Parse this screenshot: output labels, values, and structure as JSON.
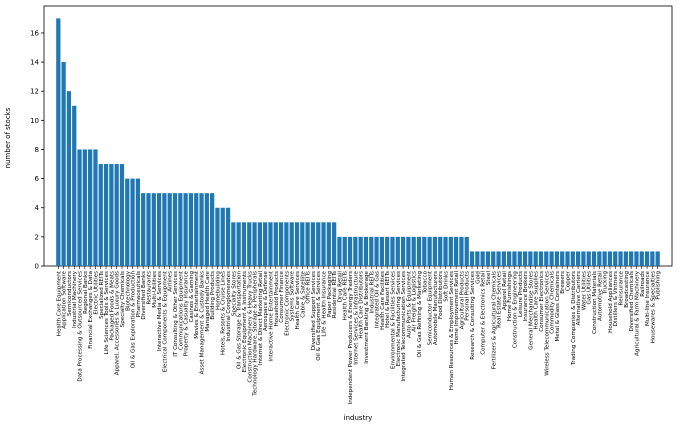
{
  "chart_data": {
    "type": "bar",
    "x_label": "industry",
    "y_label": "number of stocks",
    "color": "#1f77b4",
    "ylim": [
      0,
      17.85
    ],
    "yticks": [
      0,
      2,
      4,
      6,
      8,
      10,
      12,
      14,
      16
    ],
    "categories": [
      "Health Care Equipment",
      "Application Software",
      "Semiconductors",
      "Industrial Machinery",
      "Data Processing & Outsourced Services",
      "Regional Banks",
      "Financial Exchanges & Data",
      "Electric Utilities",
      "Specialized REITs",
      "Life Sciences Tools & Services",
      "Packaged Foods & Meats",
      "Apparel, Accessories & Luxury Goods",
      "Specialty Chemicals",
      "Biotechnology",
      "Oil & Gas Exploration & Production",
      "Pharmaceuticals",
      "Diversified Banks",
      "Restaurants",
      "Multi-Utilities",
      "Interactive Media & Services",
      "Electrical Components & Equipment",
      "Airlines",
      "IT Consulting & Other Services",
      "Communications Equipment",
      "Property & Casualty Insurance",
      "Casinos & Gaming",
      "Movies & Entertainment",
      "Asset Management & Custody Banks",
      "Managed Health Care",
      "Building Products",
      "Homebuilding",
      "Hotels, Resorts & Cruise Lines",
      "Industrial Conglomerates",
      "Specialty Stores",
      "Oil & Gas Storage & Transportation",
      "Electronic Equipment & Instruments",
      "Construction Machinery & Heavy Trucks",
      "Technology Hardware, Storage & Peripherals",
      "Internet & Direct Marketing Retail",
      "Aerospace & Defense",
      "Interactive Home Entertainment",
      "Household Products",
      "Consumer Finance",
      "Electronic Components",
      "Systems Software",
      "Health Care Services",
      "Cable & Satellite",
      "Office REITs",
      "Diversified Support Services",
      "Oil & Gas Equipment & Services",
      "Life & Health Insurance",
      "Paper Packaging",
      "Residential REITs",
      "Drug Retail",
      "Health Care REITs",
      "Independent Power Producers & Energy Traders",
      "Internet Services & Infrastructure",
      "Health Care Distributors",
      "Investment Banking & Brokerage",
      "Industrial REITs",
      "Integrated Oil & Gas",
      "Health Care Facilities",
      "Hotel & Resort REITs",
      "Environmental & Facilities Services",
      "Electronic Manufacturing Services",
      "Integrated Telecommunication Services",
      "Auto Parts & Equipment",
      "Air Freight & Logistics",
      "Oil & Gas Refining & Marketing",
      "Tobacco",
      "Semiconductor Equipment",
      "Automobile Manufacturers",
      "Food Distributors",
      "Soft Drinks",
      "Human Resources & Employment Services",
      "Home Improvement Retail",
      "Agricultural Products",
      "Personal Products",
      "Research & Consulting Services",
      "Gold",
      "Computer & Electronics Retail",
      "Steel",
      "Fertilizers & Agricultural Chemicals",
      "Real Estate Services",
      "Apparel Retail",
      "Home Furnishings",
      "Construction & Engineering",
      "Leisure Products",
      "Insurance Brokers",
      "General Merchandise Stores",
      "Health Care Supplies",
      "Consumer Electronics",
      "Wireless Telecommunication Services",
      "Commodity Chemicals",
      "Metal & Glass Containers",
      "Brewers",
      "Copper",
      "Trading Companies & Distributors",
      "Alternative Carriers",
      "Water Utilities",
      "Gas Utilities",
      "Construction Materials",
      "Automotive Retail",
      "Trucking",
      "Household Appliances",
      "Distillers & Vintners",
      "Reinsurance",
      "Broadcasting",
      "Diversified Chemicals",
      "Agricultural & Farm Machinery",
      "Railroads",
      "Multi-line Insurance",
      "Housewares & Specialties",
      "Publishing"
    ],
    "values": [
      17,
      14,
      12,
      11,
      8,
      8,
      8,
      8,
      7,
      7,
      7,
      7,
      7,
      6,
      6,
      6,
      5,
      5,
      5,
      5,
      5,
      5,
      5,
      5,
      5,
      5,
      5,
      5,
      5,
      5,
      4,
      4,
      4,
      3,
      3,
      3,
      3,
      3,
      3,
      3,
      3,
      3,
      3,
      3,
      3,
      3,
      3,
      3,
      3,
      3,
      3,
      3,
      3,
      2,
      2,
      2,
      2,
      2,
      2,
      2,
      2,
      2,
      2,
      2,
      2,
      2,
      2,
      2,
      2,
      2,
      2,
      2,
      2,
      2,
      2,
      2,
      2,
      2,
      1,
      1,
      1,
      1,
      1,
      1,
      1,
      1,
      1,
      1,
      1,
      1,
      1,
      1,
      1,
      1,
      1,
      1,
      1,
      1,
      1,
      1,
      1,
      1,
      1,
      1,
      1,
      1,
      1,
      1,
      1,
      1,
      1,
      1,
      1,
      1
    ]
  }
}
